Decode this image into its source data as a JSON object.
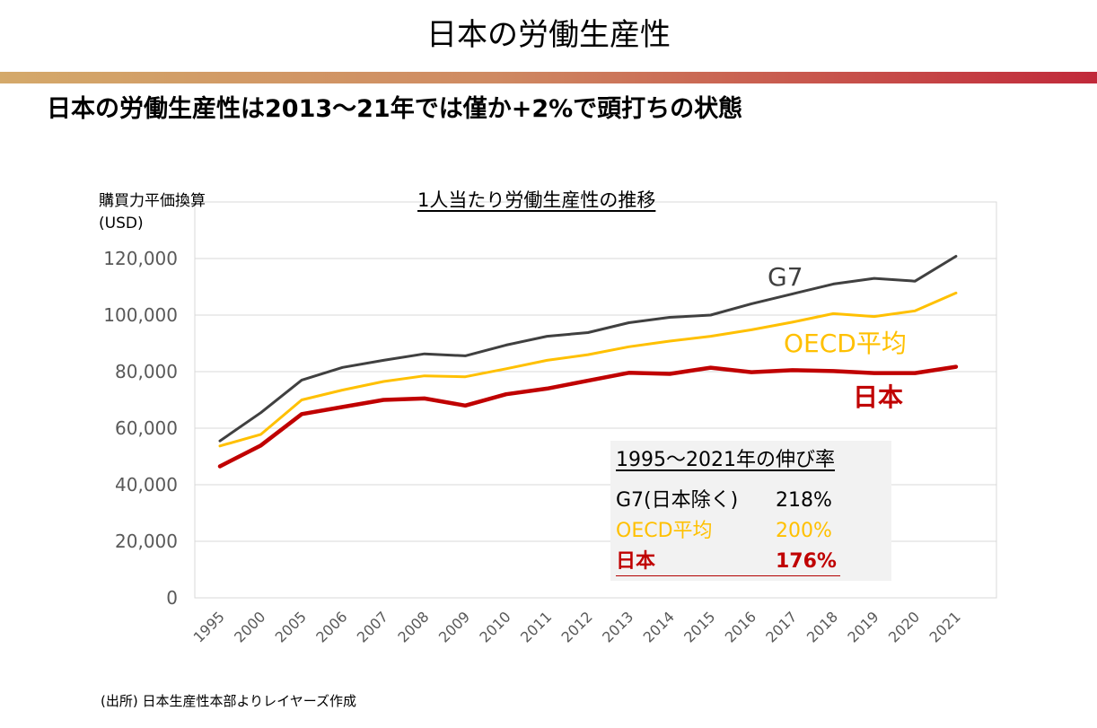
{
  "header": {
    "title": "日本の労働生産性",
    "headline": "日本の労働生産性は2013〜21年では僅か+2%で頭打ちの状態"
  },
  "colors": {
    "g7": "#404040",
    "oecd": "#ffc000",
    "japan": "#c00000",
    "grid": "#d9d9d9",
    "axis_text": "#595959"
  },
  "chart_data": {
    "type": "line",
    "title": "1人当たり労働生産性の推移",
    "ylabel_line1": "購買力平価換算",
    "ylabel_line2": "(USD)",
    "categories": [
      "1995",
      "2000",
      "2005",
      "2006",
      "2007",
      "2008",
      "2009",
      "2010",
      "2011",
      "2012",
      "2013",
      "2014",
      "2015",
      "2016",
      "2017",
      "2018",
      "2019",
      "2020",
      "2021"
    ],
    "ylim": [
      0,
      140000
    ],
    "yticks": [
      0,
      20000,
      40000,
      60000,
      80000,
      100000,
      120000
    ],
    "ytick_labels": [
      "0",
      "20,000",
      "40,000",
      "60,000",
      "80,000",
      "100,000",
      "120,000"
    ],
    "grid": true,
    "series": [
      {
        "name": "G7",
        "key": "g7",
        "values": [
          55500,
          65500,
          77000,
          81500,
          84000,
          86300,
          85600,
          89400,
          92500,
          93800,
          97300,
          99200,
          100000,
          104000,
          107500,
          111000,
          113000,
          112000,
          120800
        ]
      },
      {
        "name": "OECD平均",
        "key": "oecd",
        "values": [
          53700,
          57800,
          70000,
          73500,
          76500,
          78500,
          78200,
          81000,
          84000,
          86000,
          88800,
          90800,
          92500,
          94800,
          97500,
          100500,
          99500,
          101500,
          107800
        ]
      },
      {
        "name": "日本",
        "key": "japan",
        "values": [
          46500,
          53900,
          65000,
          67500,
          70000,
          70500,
          68000,
          72000,
          74000,
          76800,
          79600,
          79200,
          81400,
          79800,
          80500,
          80200,
          79500,
          79500,
          81700
        ]
      }
    ]
  },
  "stats": {
    "title": "1995〜2021年の伸び率",
    "rows": [
      {
        "name": "G7(日本除く)",
        "value": "218%"
      },
      {
        "name": "OECD平均",
        "value": "200%"
      },
      {
        "name": "日本",
        "value": "176%"
      }
    ]
  },
  "source": "(出所) 日本生産性本部よりレイヤーズ作成"
}
